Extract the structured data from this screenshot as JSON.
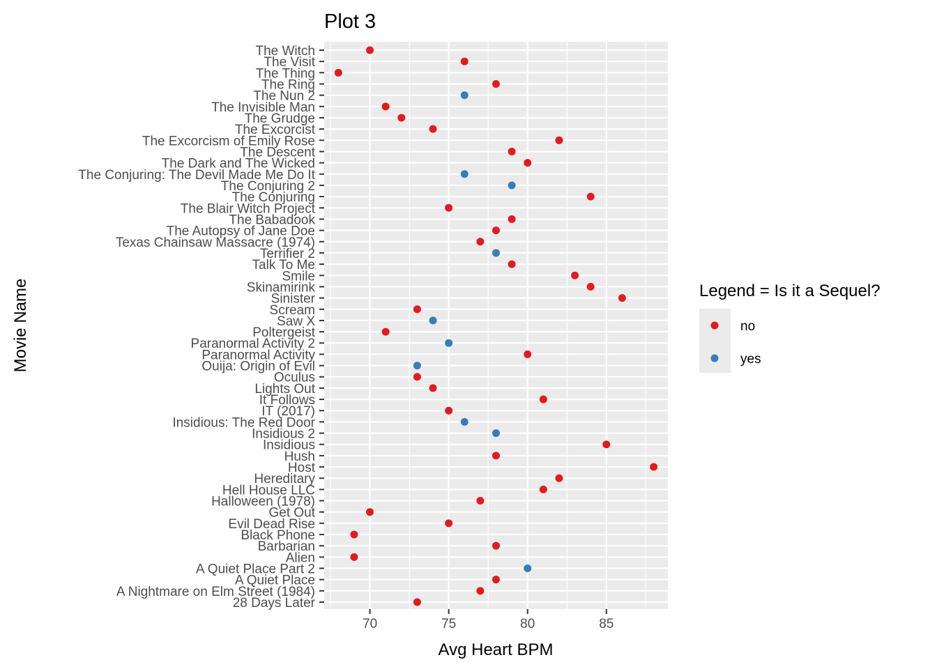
{
  "chart_data": {
    "type": "scatter",
    "title": "Plot 3",
    "xlabel": "Avg Heart BPM",
    "ylabel": "Movie Name",
    "xlim": [
      67.1,
      88.9
    ],
    "x_ticks": [
      70,
      75,
      80,
      85
    ],
    "grid": true,
    "legend": {
      "title": "Legend = Is it a Sequel?",
      "placement": "right",
      "entries": [
        {
          "label": "no",
          "color": "#E41A1C"
        },
        {
          "label": "yes",
          "color": "#377EB8"
        }
      ]
    },
    "points": [
      {
        "movie": "The Witch",
        "bpm": 70,
        "sequel": "no"
      },
      {
        "movie": "The Visit",
        "bpm": 76,
        "sequel": "no"
      },
      {
        "movie": "The Thing",
        "bpm": 68,
        "sequel": "no"
      },
      {
        "movie": "The Ring",
        "bpm": 78,
        "sequel": "no"
      },
      {
        "movie": "The Nun 2",
        "bpm": 76,
        "sequel": "yes"
      },
      {
        "movie": "The Invisible Man",
        "bpm": 71,
        "sequel": "no"
      },
      {
        "movie": "The Grudge",
        "bpm": 72,
        "sequel": "no"
      },
      {
        "movie": "The Excorcist",
        "bpm": 74,
        "sequel": "no"
      },
      {
        "movie": "The Excorcism of Emily Rose",
        "bpm": 82,
        "sequel": "no"
      },
      {
        "movie": "The Descent",
        "bpm": 79,
        "sequel": "no"
      },
      {
        "movie": "The Dark and The Wicked",
        "bpm": 80,
        "sequel": "no"
      },
      {
        "movie": "The Conjuring: The Devil Made Me Do It",
        "bpm": 76,
        "sequel": "yes"
      },
      {
        "movie": "The Conjuring 2",
        "bpm": 79,
        "sequel": "yes"
      },
      {
        "movie": "The Conjuring",
        "bpm": 84,
        "sequel": "no"
      },
      {
        "movie": "The Blair Witch Project",
        "bpm": 75,
        "sequel": "no"
      },
      {
        "movie": "The Babadook",
        "bpm": 79,
        "sequel": "no"
      },
      {
        "movie": "The Autopsy of Jane Doe",
        "bpm": 78,
        "sequel": "no"
      },
      {
        "movie": "Texas Chainsaw Massacre (1974)",
        "bpm": 77,
        "sequel": "no"
      },
      {
        "movie": "Terrifier 2",
        "bpm": 78,
        "sequel": "yes"
      },
      {
        "movie": "Talk To Me",
        "bpm": 79,
        "sequel": "no"
      },
      {
        "movie": "Smile",
        "bpm": 83,
        "sequel": "no"
      },
      {
        "movie": "Skinamirink",
        "bpm": 84,
        "sequel": "no"
      },
      {
        "movie": "Sinister",
        "bpm": 86,
        "sequel": "no"
      },
      {
        "movie": "Scream",
        "bpm": 73,
        "sequel": "no"
      },
      {
        "movie": "Saw X",
        "bpm": 74,
        "sequel": "yes"
      },
      {
        "movie": "Poltergeist",
        "bpm": 71,
        "sequel": "no"
      },
      {
        "movie": "Paranormal Activity 2",
        "bpm": 75,
        "sequel": "yes"
      },
      {
        "movie": "Paranormal Activity",
        "bpm": 80,
        "sequel": "no"
      },
      {
        "movie": "Ouija: Origin of Evil",
        "bpm": 73,
        "sequel": "yes"
      },
      {
        "movie": "Oculus",
        "bpm": 73,
        "sequel": "no"
      },
      {
        "movie": "Lights Out",
        "bpm": 74,
        "sequel": "no"
      },
      {
        "movie": "It Follows",
        "bpm": 81,
        "sequel": "no"
      },
      {
        "movie": "IT (2017)",
        "bpm": 75,
        "sequel": "no"
      },
      {
        "movie": "Insidious: The Red Door",
        "bpm": 76,
        "sequel": "yes"
      },
      {
        "movie": "Insidious 2",
        "bpm": 78,
        "sequel": "yes"
      },
      {
        "movie": "Insidious",
        "bpm": 85,
        "sequel": "no"
      },
      {
        "movie": "Hush",
        "bpm": 78,
        "sequel": "no"
      },
      {
        "movie": "Host",
        "bpm": 88,
        "sequel": "no"
      },
      {
        "movie": "Hereditary",
        "bpm": 82,
        "sequel": "no"
      },
      {
        "movie": "Hell House LLC",
        "bpm": 81,
        "sequel": "no"
      },
      {
        "movie": "Halloween (1978)",
        "bpm": 77,
        "sequel": "no"
      },
      {
        "movie": "Get Out",
        "bpm": 70,
        "sequel": "no"
      },
      {
        "movie": "Evil Dead Rise",
        "bpm": 75,
        "sequel": "no"
      },
      {
        "movie": "Black Phone",
        "bpm": 69,
        "sequel": "no"
      },
      {
        "movie": "Barbarian",
        "bpm": 78,
        "sequel": "no"
      },
      {
        "movie": "Alien",
        "bpm": 69,
        "sequel": "no"
      },
      {
        "movie": "A Quiet Place Part 2",
        "bpm": 80,
        "sequel": "yes"
      },
      {
        "movie": "A Quiet Place",
        "bpm": 78,
        "sequel": "no"
      },
      {
        "movie": "A Nightmare on Elm Street (1984)",
        "bpm": 77,
        "sequel": "no"
      },
      {
        "movie": "28 Days Later",
        "bpm": 73,
        "sequel": "no"
      }
    ]
  }
}
